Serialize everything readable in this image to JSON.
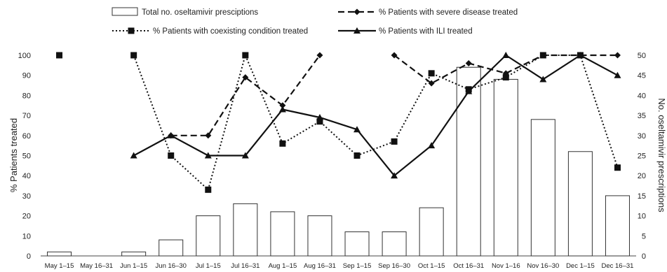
{
  "chart_data": {
    "type": "bar",
    "categories": [
      "May 1–15",
      "May 16–31",
      "Jun 1–15",
      "Jun 16–30",
      "Jul 1–15",
      "Jul 16–31",
      "Aug 1–15",
      "Aug 16–31",
      "Sep 1–15",
      "Sep 16–30",
      "Oct 1–15",
      "Oct 16–31",
      "Nov 1–16",
      "Nov 16–30",
      "Dec 1–15",
      "Dec 16–31"
    ],
    "ylabel_left": "% Patients  treated",
    "ylabel_right": "No. oseltamivir prescriptions",
    "ylim_left": [
      0,
      100
    ],
    "ylim_right": [
      0,
      50
    ],
    "yticks_left": [
      "0",
      "10",
      "20",
      "30",
      "40",
      "50",
      "60",
      "70",
      "80",
      "90",
      "100"
    ],
    "yticks_right": [
      "0",
      "5",
      "10",
      "15",
      "20",
      "25",
      "30",
      "35",
      "40",
      "45",
      "50"
    ],
    "legend_position": "top",
    "series": [
      {
        "name": "Total no. oseltamivir presciptions",
        "type": "bar",
        "axis": "right",
        "color": "#ffffff",
        "stroke": "#222222",
        "values": [
          1,
          0,
          1,
          4,
          10,
          13,
          11,
          10,
          6,
          6,
          12,
          47,
          44,
          34,
          26,
          15
        ]
      },
      {
        "name": "% Patients with severe disease treated",
        "type": "line",
        "axis": "left",
        "style": "dashed",
        "marker": "diamond",
        "color": "#111111",
        "values": [
          null,
          null,
          null,
          60,
          60,
          89,
          75,
          100,
          null,
          100,
          86,
          96,
          91,
          100,
          100,
          100
        ]
      },
      {
        "name": "% Patients with coexisting condition treated",
        "type": "line",
        "axis": "left",
        "style": "dotted",
        "marker": "square",
        "color": "#111111",
        "values": [
          100,
          null,
          100,
          50,
          33,
          100,
          56,
          67,
          50,
          57,
          91,
          83,
          89,
          100,
          100,
          44
        ]
      },
      {
        "name": "% Patients with ILI treated",
        "type": "line",
        "axis": "left",
        "style": "solid",
        "marker": "triangle",
        "color": "#111111",
        "values": [
          null,
          null,
          50,
          60,
          50,
          50,
          73,
          69,
          63,
          40,
          55,
          82,
          100,
          88,
          100,
          90
        ]
      }
    ]
  }
}
